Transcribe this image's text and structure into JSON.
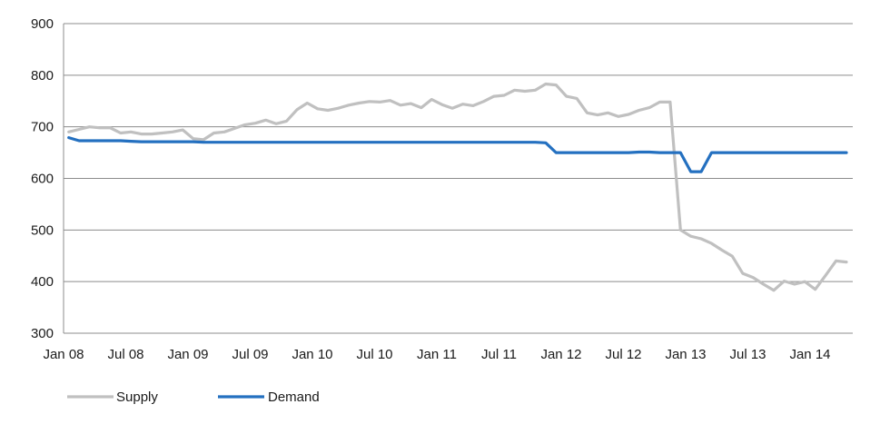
{
  "chart_data": {
    "type": "line",
    "title": "",
    "xlabel": "",
    "ylabel": "",
    "ylim": [
      300,
      900
    ],
    "yticks": [
      300,
      400,
      500,
      600,
      700,
      800,
      900
    ],
    "xtick_labels": [
      "Jan 08",
      "Jul 08",
      "Jan 09",
      "Jul 09",
      "Jan 10",
      "Jul 10",
      "Jan 11",
      "Jul 11",
      "Jan 12",
      "Jul 12",
      "Jan 13",
      "Jul 13",
      "Jan 14"
    ],
    "x_start": "Jan 08",
    "x_end": "Apr 14",
    "grid": "horizontal",
    "legend_position": "bottom-left",
    "series": [
      {
        "name": "Supply",
        "color": "#c0c0c0",
        "x": [
          "Jan 08",
          "Feb 08",
          "Mar 08",
          "Apr 08",
          "May 08",
          "Jun 08",
          "Jul 08",
          "Aug 08",
          "Sep 08",
          "Oct 08",
          "Nov 08",
          "Dec 08",
          "Jan 09",
          "Feb 09",
          "Mar 09",
          "Apr 09",
          "May 09",
          "Jun 09",
          "Jul 09",
          "Aug 09",
          "Sep 09",
          "Oct 09",
          "Nov 09",
          "Dec 09",
          "Jan 10",
          "Feb 10",
          "Mar 10",
          "Apr 10",
          "May 10",
          "Jun 10",
          "Jul 10",
          "Aug 10",
          "Sep 10",
          "Oct 10",
          "Nov 10",
          "Dec 10",
          "Jan 11",
          "Feb 11",
          "Mar 11",
          "Apr 11",
          "May 11",
          "Jun 11",
          "Jul 11",
          "Aug 11",
          "Sep 11",
          "Oct 11",
          "Nov 11",
          "Dec 11",
          "Jan 12",
          "Feb 12",
          "Mar 12",
          "Apr 12",
          "May 12",
          "Jun 12",
          "Jul 12",
          "Aug 12",
          "Sep 12",
          "Oct 12",
          "Nov 12",
          "Dec 12",
          "Jan 13",
          "Feb 13",
          "Mar 13",
          "Apr 13",
          "May 13",
          "Jun 13",
          "Jul 13",
          "Aug 13",
          "Sep 13",
          "Oct 13",
          "Nov 13",
          "Dec 13",
          "Jan 14",
          "Feb 14",
          "Mar 14",
          "Apr 14"
        ],
        "values": [
          690,
          695,
          700,
          698,
          698,
          688,
          690,
          686,
          686,
          688,
          690,
          694,
          677,
          675,
          688,
          690,
          697,
          704,
          707,
          713,
          706,
          711,
          733,
          746,
          735,
          732,
          736,
          742,
          746,
          749,
          748,
          751,
          742,
          745,
          737,
          753,
          743,
          736,
          744,
          741,
          749,
          759,
          761,
          771,
          769,
          771,
          783,
          781,
          759,
          755,
          727,
          723,
          727,
          720,
          724,
          732,
          737,
          748,
          748,
          500,
          488,
          483,
          474,
          461,
          449,
          416,
          408,
          395,
          383,
          401,
          395,
          400,
          385,
          412,
          440,
          438
        ]
      },
      {
        "name": "Demand",
        "color": "#2470c0",
        "x": [
          "Jan 08",
          "Feb 08",
          "Mar 08",
          "Apr 08",
          "May 08",
          "Jun 08",
          "Jul 08",
          "Aug 08",
          "Sep 08",
          "Oct 08",
          "Nov 08",
          "Dec 08",
          "Jan 09",
          "Feb 09",
          "Mar 09",
          "Apr 09",
          "May 09",
          "Jun 09",
          "Jul 09",
          "Aug 09",
          "Sep 09",
          "Oct 09",
          "Nov 09",
          "Dec 09",
          "Jan 10",
          "Feb 10",
          "Mar 10",
          "Apr 10",
          "May 10",
          "Jun 10",
          "Jul 10",
          "Aug 10",
          "Sep 10",
          "Oct 10",
          "Nov 10",
          "Dec 10",
          "Jan 11",
          "Feb 11",
          "Mar 11",
          "Apr 11",
          "May 11",
          "Jun 11",
          "Jul 11",
          "Aug 11",
          "Sep 11",
          "Oct 11",
          "Nov 11",
          "Dec 11",
          "Jan 12",
          "Feb 12",
          "Mar 12",
          "Apr 12",
          "May 12",
          "Jun 12",
          "Jul 12",
          "Aug 12",
          "Sep 12",
          "Oct 12",
          "Nov 12",
          "Dec 12",
          "Jan 13",
          "Feb 13",
          "Mar 13",
          "Apr 13",
          "May 13",
          "Jun 13",
          "Jul 13",
          "Aug 13",
          "Sep 13",
          "Oct 13",
          "Nov 13",
          "Dec 13",
          "Jan 14",
          "Feb 14",
          "Mar 14",
          "Apr 14"
        ],
        "values": [
          679,
          673,
          673,
          673,
          673,
          673,
          672,
          671,
          671,
          671,
          671,
          671,
          671,
          670,
          670,
          670,
          670,
          670,
          670,
          670,
          670,
          670,
          670,
          670,
          670,
          670,
          670,
          670,
          670,
          670,
          670,
          670,
          670,
          670,
          670,
          670,
          670,
          670,
          670,
          670,
          670,
          670,
          670,
          670,
          670,
          670,
          669,
          650,
          650,
          650,
          650,
          650,
          650,
          650,
          650,
          651,
          651,
          650,
          650,
          650,
          613,
          613,
          650,
          650,
          650,
          650,
          650,
          650,
          650,
          650,
          650,
          650,
          650,
          650,
          650,
          650
        ]
      }
    ]
  }
}
